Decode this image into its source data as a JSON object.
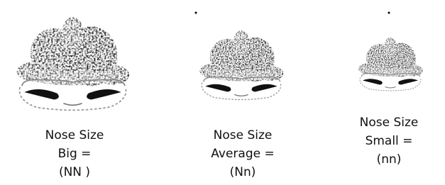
{
  "items": [
    {
      "lines": [
        "Nose Size",
        "Big =",
        "(NN )"
      ]
    },
    {
      "lines": [
        "Nose Size",
        "Average =",
        "(Nn)"
      ]
    },
    {
      "lines": [
        "Nose Size",
        "Small =",
        "(nn)"
      ]
    }
  ]
}
